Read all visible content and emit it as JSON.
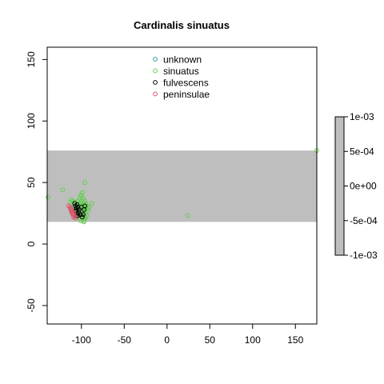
{
  "chart_data": {
    "type": "scatter",
    "title": "Cardinalis sinuatus",
    "xlabel": "",
    "ylabel": "",
    "xlim": [
      -140,
      175
    ],
    "ylim": [
      -65,
      160
    ],
    "x_ticks": [
      -100,
      -50,
      0,
      50,
      100,
      150
    ],
    "x_tick_labels": [
      "-100",
      "-50",
      "0",
      "50",
      "100",
      "150"
    ],
    "y_ticks": [
      -50,
      0,
      50,
      100,
      150
    ],
    "y_tick_labels": [
      "-50",
      "0",
      "50",
      "100",
      "150"
    ],
    "grid": false,
    "legend_position": "top-center",
    "band": {
      "y_min": 18,
      "y_max": 76,
      "color": "#bebebe"
    },
    "series": [
      {
        "name": "unknown",
        "color": "#2a9db0",
        "points": []
      },
      {
        "name": "sinuatus",
        "color": "#61d04f",
        "points": [
          [
            -139,
            38
          ],
          [
            -122,
            44
          ],
          [
            -113,
            34
          ],
          [
            -112,
            36
          ],
          [
            -110,
            35
          ],
          [
            -108,
            34
          ],
          [
            -106,
            33
          ],
          [
            -104,
            31
          ],
          [
            -102,
            30
          ],
          [
            -100,
            28
          ],
          [
            -98,
            26
          ],
          [
            -97,
            24
          ],
          [
            -96,
            22
          ],
          [
            -99,
            20
          ],
          [
            -101,
            19
          ],
          [
            -103,
            21
          ],
          [
            -105,
            23
          ],
          [
            -107,
            25
          ],
          [
            -109,
            27
          ],
          [
            -111,
            29
          ],
          [
            -108,
            31
          ],
          [
            -106,
            29
          ],
          [
            -104,
            27
          ],
          [
            -102,
            25
          ],
          [
            -100,
            23
          ],
          [
            -98,
            21
          ],
          [
            -97,
            19
          ],
          [
            -96,
            35
          ],
          [
            -98,
            37
          ],
          [
            -100,
            39
          ],
          [
            -102,
            37
          ],
          [
            -104,
            35
          ],
          [
            -106,
            31
          ],
          [
            -95,
            33
          ],
          [
            -94,
            31
          ],
          [
            -93,
            29
          ],
          [
            -92,
            27
          ],
          [
            -101,
            33
          ],
          [
            -103,
            33
          ],
          [
            -97,
            31
          ],
          [
            -99,
            29
          ],
          [
            -95,
            25
          ],
          [
            -94,
            23
          ],
          [
            -96,
            27
          ],
          [
            -98,
            33
          ],
          [
            -100,
            35
          ],
          [
            -102,
            33
          ],
          [
            -104,
            29
          ],
          [
            -106,
            27
          ],
          [
            -108,
            23
          ],
          [
            -110,
            25
          ],
          [
            -112,
            27
          ],
          [
            -100,
            31
          ],
          [
            -98,
            29
          ],
          [
            -96,
            29
          ],
          [
            -95,
            21
          ],
          [
            -97,
            18
          ],
          [
            -101,
            40
          ],
          [
            -99,
            42
          ],
          [
            -96,
            50
          ],
          [
            -88,
            33
          ],
          [
            -91,
            30
          ],
          [
            24,
            23
          ],
          [
            175,
            76
          ]
        ]
      },
      {
        "name": "fulvescens",
        "color": "#000000",
        "points": [
          [
            -108,
            33
          ],
          [
            -107,
            31
          ],
          [
            -106,
            29
          ],
          [
            -106,
            27
          ],
          [
            -105,
            25
          ],
          [
            -106,
            23
          ],
          [
            -104,
            23
          ],
          [
            -101,
            24
          ],
          [
            -103,
            26
          ],
          [
            -99,
            22
          ],
          [
            -97,
            28
          ],
          [
            -96,
            31
          ],
          [
            -98,
            24
          ],
          [
            -100,
            30
          ],
          [
            -104,
            30
          ],
          [
            -107,
            27
          ],
          [
            -105,
            32
          ],
          [
            -103,
            28
          ]
        ]
      },
      {
        "name": "peninsulae",
        "color": "#df536b",
        "points": [
          [
            -115,
            31
          ],
          [
            -113,
            29
          ],
          [
            -112,
            28
          ],
          [
            -111,
            27
          ],
          [
            -110,
            26
          ],
          [
            -109,
            25
          ],
          [
            -110,
            24
          ],
          [
            -108,
            23
          ],
          [
            -109,
            22
          ],
          [
            -107,
            21
          ],
          [
            -111,
            25
          ],
          [
            -112,
            27
          ],
          [
            -113,
            30
          ]
        ]
      }
    ]
  },
  "colorbar": {
    "labels": [
      "1e-03",
      "5e-04",
      "0e+00",
      "-5e-04",
      "-1e-03"
    ],
    "min": -0.001,
    "max": 0.001,
    "color": "#bebebe"
  }
}
